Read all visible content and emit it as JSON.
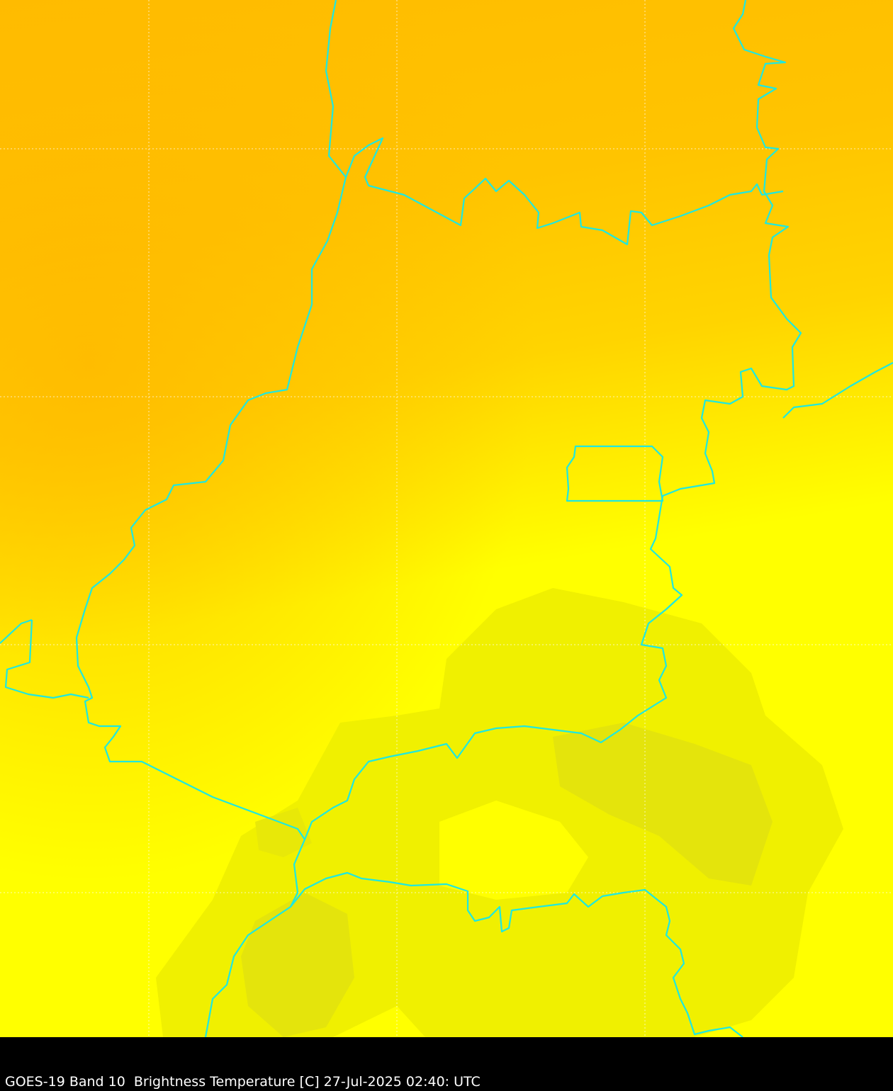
{
  "caption": "GOES-19 Band 10  Brightness Temperature [C] 27-Jul-2025 02:40: UTC",
  "colors": {
    "warm_top": "#FFBE00",
    "mid": "#FFD800",
    "yellow": "#FFFF00",
    "cool_patch": "#F0F000",
    "cooler_patch": "#E4E40C",
    "borders": "#1EE8E0",
    "grid": "#FFFFFF",
    "caption_bg": "#000000"
  },
  "map": {
    "borders_icon": "cyan-boundary-lines",
    "gridlines": "dotted white lat/lon grid"
  }
}
